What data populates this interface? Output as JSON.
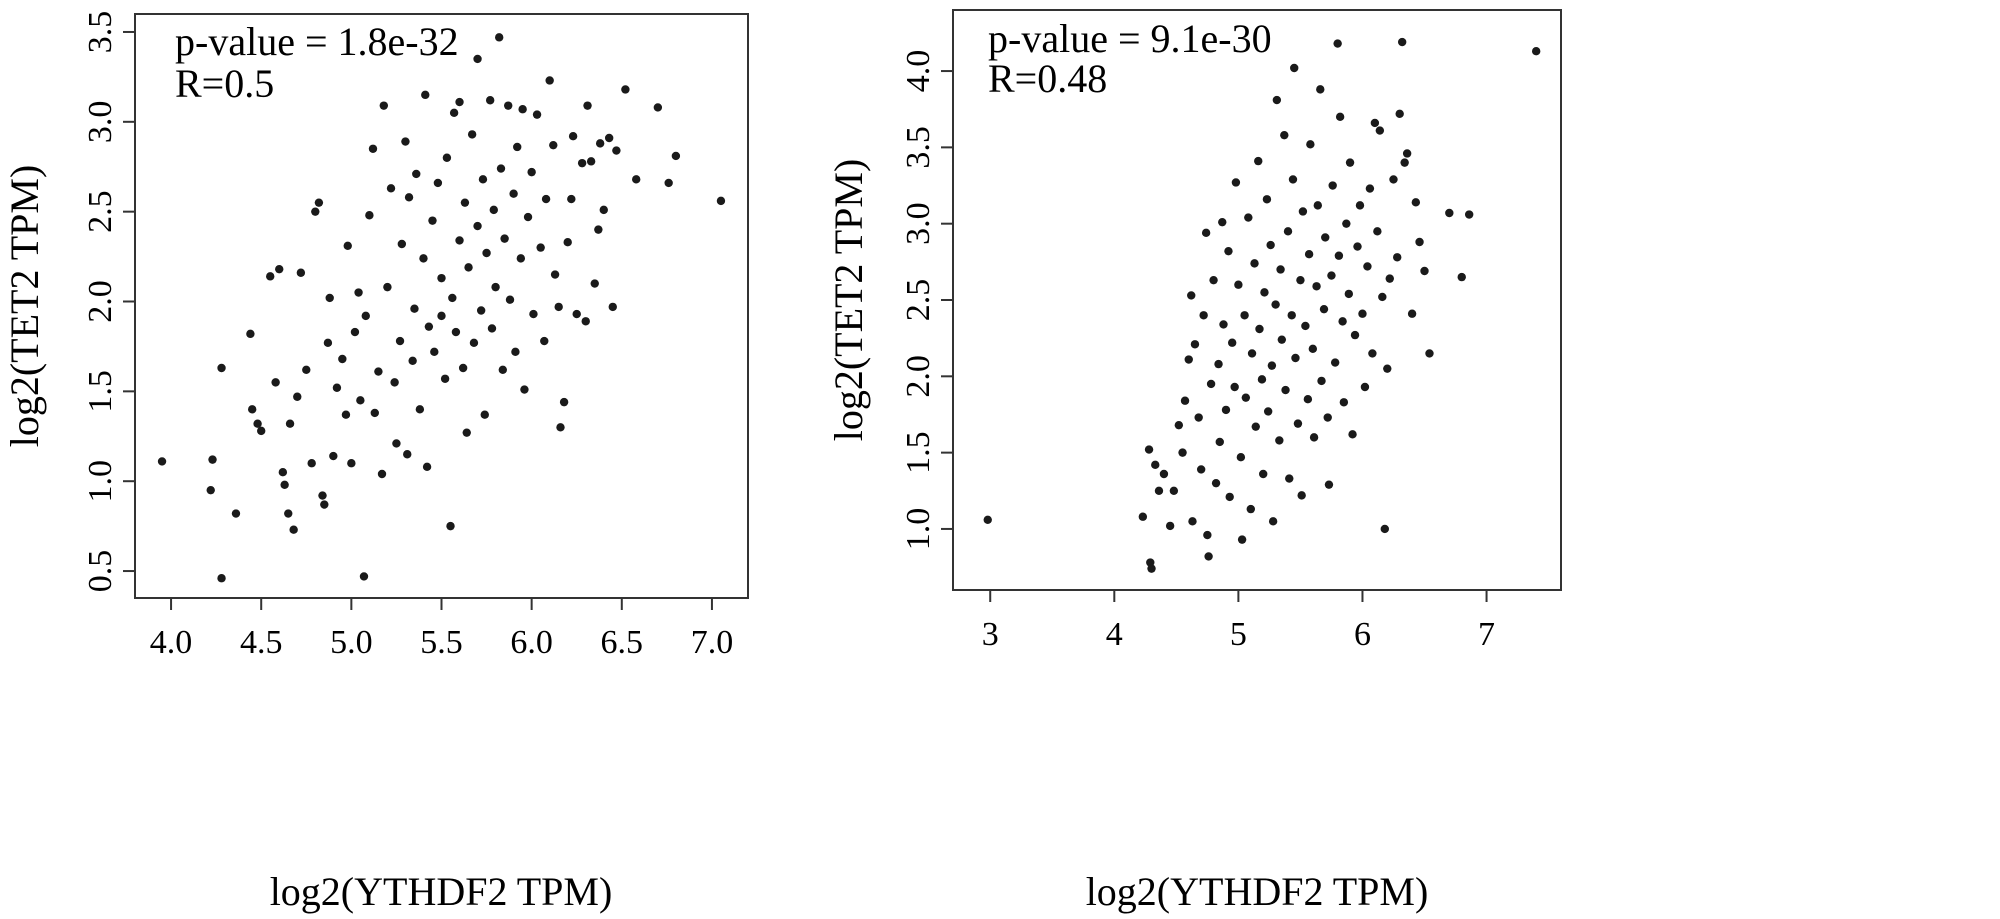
{
  "chart_data": [
    {
      "type": "scatter",
      "annotations": [
        "p-value = 1.8e-32",
        "R=0.5"
      ],
      "xlabel": "log2(YTHDF2 TPM)",
      "ylabel": "log2(TET2 TPM)",
      "xlim": [
        3.8,
        7.2
      ],
      "ylim": [
        0.35,
        3.6
      ],
      "x_ticks": [
        4.0,
        4.5,
        5.0,
        5.5,
        6.0,
        6.5,
        7.0
      ],
      "x_tick_labels": [
        "4.0",
        "4.5",
        "5.0",
        "5.5",
        "6.0",
        "6.5",
        "7.0"
      ],
      "y_ticks": [
        0.5,
        1.0,
        1.5,
        2.0,
        2.5,
        3.0,
        3.5
      ],
      "y_tick_labels": [
        "0.5",
        "1.0",
        "1.5",
        "2.0",
        "2.5",
        "3.0",
        "3.5"
      ],
      "point_color": "#1a1a1a",
      "grid": false,
      "points": [
        [
          3.95,
          1.11
        ],
        [
          4.23,
          1.12
        ],
        [
          4.22,
          0.95
        ],
        [
          4.28,
          0.46
        ],
        [
          4.36,
          0.82
        ],
        [
          4.28,
          1.63
        ],
        [
          4.44,
          1.82
        ],
        [
          4.45,
          1.4
        ],
        [
          4.48,
          1.32
        ],
        [
          4.5,
          1.28
        ],
        [
          4.55,
          2.14
        ],
        [
          4.58,
          1.55
        ],
        [
          4.6,
          2.18
        ],
        [
          4.62,
          1.05
        ],
        [
          4.63,
          0.98
        ],
        [
          4.65,
          0.82
        ],
        [
          4.68,
          0.73
        ],
        [
          4.66,
          1.32
        ],
        [
          4.7,
          1.47
        ],
        [
          4.72,
          2.16
        ],
        [
          4.75,
          1.62
        ],
        [
          4.78,
          1.1
        ],
        [
          4.8,
          2.5
        ],
        [
          4.82,
          2.55
        ],
        [
          4.84,
          0.92
        ],
        [
          4.85,
          0.87
        ],
        [
          4.87,
          1.77
        ],
        [
          4.88,
          2.02
        ],
        [
          4.9,
          1.14
        ],
        [
          4.92,
          1.52
        ],
        [
          4.95,
          1.68
        ],
        [
          4.97,
          1.37
        ],
        [
          4.98,
          2.31
        ],
        [
          5.0,
          1.1
        ],
        [
          5.02,
          1.83
        ],
        [
          5.04,
          2.05
        ],
        [
          5.05,
          1.45
        ],
        [
          5.07,
          0.47
        ],
        [
          5.08,
          1.92
        ],
        [
          5.1,
          2.48
        ],
        [
          5.12,
          2.85
        ],
        [
          5.13,
          1.38
        ],
        [
          5.15,
          1.61
        ],
        [
          5.18,
          3.09
        ],
        [
          5.17,
          1.04
        ],
        [
          5.2,
          2.08
        ],
        [
          5.22,
          2.63
        ],
        [
          5.24,
          1.55
        ],
        [
          5.25,
          1.21
        ],
        [
          5.27,
          1.78
        ],
        [
          5.28,
          2.32
        ],
        [
          5.3,
          2.89
        ],
        [
          5.31,
          1.15
        ],
        [
          5.32,
          2.58
        ],
        [
          5.34,
          1.67
        ],
        [
          5.35,
          1.96
        ],
        [
          5.36,
          2.71
        ],
        [
          5.38,
          1.4
        ],
        [
          5.4,
          2.24
        ],
        [
          5.41,
          3.15
        ],
        [
          5.42,
          1.08
        ],
        [
          5.43,
          1.86
        ],
        [
          5.45,
          2.45
        ],
        [
          5.46,
          1.72
        ],
        [
          5.48,
          2.66
        ],
        [
          5.5,
          1.92
        ],
        [
          5.5,
          2.13
        ],
        [
          5.52,
          1.57
        ],
        [
          5.53,
          2.8
        ],
        [
          5.55,
          0.75
        ],
        [
          5.56,
          2.02
        ],
        [
          5.57,
          3.05
        ],
        [
          5.58,
          1.83
        ],
        [
          5.6,
          2.34
        ],
        [
          5.6,
          3.11
        ],
        [
          5.62,
          1.63
        ],
        [
          5.63,
          2.55
        ],
        [
          5.64,
          1.27
        ],
        [
          5.65,
          2.19
        ],
        [
          5.67,
          2.93
        ],
        [
          5.68,
          1.77
        ],
        [
          5.7,
          3.35
        ],
        [
          5.7,
          2.42
        ],
        [
          5.72,
          1.95
        ],
        [
          5.73,
          2.68
        ],
        [
          5.74,
          1.37
        ],
        [
          5.75,
          2.27
        ],
        [
          5.77,
          3.12
        ],
        [
          5.78,
          1.85
        ],
        [
          5.79,
          2.51
        ],
        [
          5.8,
          2.08
        ],
        [
          5.82,
          3.47
        ],
        [
          5.83,
          2.74
        ],
        [
          5.84,
          1.62
        ],
        [
          5.85,
          2.35
        ],
        [
          5.87,
          3.09
        ],
        [
          5.88,
          2.01
        ],
        [
          5.9,
          2.6
        ],
        [
          5.91,
          1.72
        ],
        [
          5.92,
          2.86
        ],
        [
          5.94,
          2.24
        ],
        [
          5.95,
          3.07
        ],
        [
          5.96,
          1.51
        ],
        [
          5.98,
          2.47
        ],
        [
          6.0,
          2.72
        ],
        [
          6.01,
          1.93
        ],
        [
          6.03,
          3.04
        ],
        [
          6.05,
          2.3
        ],
        [
          6.07,
          1.78
        ],
        [
          6.08,
          2.57
        ],
        [
          6.1,
          3.23
        ],
        [
          6.12,
          2.87
        ],
        [
          6.13,
          2.15
        ],
        [
          6.15,
          1.97
        ],
        [
          6.16,
          1.3
        ],
        [
          6.18,
          1.44
        ],
        [
          6.2,
          2.33
        ],
        [
          6.22,
          2.57
        ],
        [
          6.23,
          2.92
        ],
        [
          6.25,
          1.93
        ],
        [
          6.28,
          2.77
        ],
        [
          6.3,
          1.89
        ],
        [
          6.31,
          3.09
        ],
        [
          6.33,
          2.78
        ],
        [
          6.35,
          2.1
        ],
        [
          6.37,
          2.4
        ],
        [
          6.38,
          2.88
        ],
        [
          6.4,
          2.51
        ],
        [
          6.43,
          2.91
        ],
        [
          6.45,
          1.97
        ],
        [
          6.47,
          2.84
        ],
        [
          6.52,
          3.18
        ],
        [
          6.58,
          2.68
        ],
        [
          6.7,
          3.08
        ],
        [
          6.76,
          2.66
        ],
        [
          6.8,
          2.81
        ],
        [
          7.05,
          2.56
        ]
      ]
    },
    {
      "type": "scatter",
      "annotations": [
        "p-value = 9.1e-30",
        "R=0.48"
      ],
      "xlabel": "log2(YTHDF2 TPM)",
      "ylabel": "log2(TET2 TPM)",
      "xlim": [
        2.7,
        7.6
      ],
      "ylim": [
        0.6,
        4.4
      ],
      "x_ticks": [
        3,
        4,
        5,
        6,
        7
      ],
      "x_tick_labels": [
        "3",
        "4",
        "5",
        "6",
        "7"
      ],
      "y_ticks": [
        1.0,
        1.5,
        2.0,
        2.5,
        3.0,
        3.5,
        4.0
      ],
      "y_tick_labels": [
        "1.0",
        "1.5",
        "2.0",
        "2.5",
        "3.0",
        "3.5",
        "4.0"
      ],
      "point_color": "#1a1a1a",
      "grid": false,
      "points": [
        [
          2.98,
          1.06
        ],
        [
          4.23,
          1.08
        ],
        [
          4.28,
          1.52
        ],
        [
          4.29,
          0.78
        ],
        [
          4.3,
          0.74
        ],
        [
          4.33,
          1.42
        ],
        [
          4.36,
          1.25
        ],
        [
          4.4,
          1.36
        ],
        [
          4.45,
          1.02
        ],
        [
          4.48,
          1.25
        ],
        [
          4.52,
          1.68
        ],
        [
          4.55,
          1.5
        ],
        [
          4.57,
          1.84
        ],
        [
          4.6,
          2.11
        ],
        [
          4.62,
          2.53
        ],
        [
          4.63,
          1.05
        ],
        [
          4.65,
          2.21
        ],
        [
          4.68,
          1.73
        ],
        [
          4.7,
          1.39
        ],
        [
          4.72,
          2.4
        ],
        [
          4.74,
          2.94
        ],
        [
          4.75,
          0.96
        ],
        [
          4.76,
          0.82
        ],
        [
          4.78,
          1.95
        ],
        [
          4.8,
          2.63
        ],
        [
          4.82,
          1.3
        ],
        [
          4.84,
          2.08
        ],
        [
          4.85,
          1.57
        ],
        [
          4.87,
          3.01
        ],
        [
          4.88,
          2.34
        ],
        [
          4.9,
          1.78
        ],
        [
          4.92,
          2.82
        ],
        [
          4.93,
          1.21
        ],
        [
          4.95,
          2.22
        ],
        [
          4.97,
          1.93
        ],
        [
          4.98,
          3.27
        ],
        [
          5.0,
          2.6
        ],
        [
          5.02,
          1.47
        ],
        [
          5.03,
          0.93
        ],
        [
          5.05,
          2.4
        ],
        [
          5.06,
          1.86
        ],
        [
          5.08,
          3.04
        ],
        [
          5.1,
          1.13
        ],
        [
          5.11,
          2.15
        ],
        [
          5.13,
          2.74
        ],
        [
          5.14,
          1.67
        ],
        [
          5.16,
          3.41
        ],
        [
          5.17,
          2.31
        ],
        [
          5.19,
          1.98
        ],
        [
          5.2,
          1.36
        ],
        [
          5.21,
          2.55
        ],
        [
          5.23,
          3.16
        ],
        [
          5.24,
          1.77
        ],
        [
          5.26,
          2.86
        ],
        [
          5.27,
          2.07
        ],
        [
          5.28,
          1.05
        ],
        [
          5.3,
          2.47
        ],
        [
          5.31,
          3.81
        ],
        [
          5.33,
          1.58
        ],
        [
          5.34,
          2.7
        ],
        [
          5.35,
          2.24
        ],
        [
          5.37,
          3.58
        ],
        [
          5.38,
          1.91
        ],
        [
          5.4,
          2.95
        ],
        [
          5.41,
          1.33
        ],
        [
          5.43,
          2.4
        ],
        [
          5.44,
          3.29
        ],
        [
          5.45,
          4.02
        ],
        [
          5.46,
          2.12
        ],
        [
          5.48,
          1.69
        ],
        [
          5.5,
          2.63
        ],
        [
          5.51,
          1.22
        ],
        [
          5.52,
          3.08
        ],
        [
          5.54,
          2.33
        ],
        [
          5.56,
          1.85
        ],
        [
          5.57,
          2.8
        ],
        [
          5.58,
          3.52
        ],
        [
          5.6,
          2.18
        ],
        [
          5.61,
          1.6
        ],
        [
          5.63,
          2.59
        ],
        [
          5.64,
          3.12
        ],
        [
          5.66,
          3.88
        ],
        [
          5.67,
          1.97
        ],
        [
          5.69,
          2.44
        ],
        [
          5.7,
          2.91
        ],
        [
          5.72,
          1.73
        ],
        [
          5.73,
          1.29
        ],
        [
          5.75,
          2.66
        ],
        [
          5.76,
          3.25
        ],
        [
          5.78,
          2.09
        ],
        [
          5.8,
          4.18
        ],
        [
          5.81,
          2.79
        ],
        [
          5.82,
          3.7
        ],
        [
          5.84,
          2.36
        ],
        [
          5.85,
          1.83
        ],
        [
          5.87,
          3.0
        ],
        [
          5.89,
          2.54
        ],
        [
          5.9,
          3.4
        ],
        [
          5.92,
          1.62
        ],
        [
          5.94,
          2.27
        ],
        [
          5.96,
          2.85
        ],
        [
          5.98,
          3.12
        ],
        [
          6.0,
          2.41
        ],
        [
          6.02,
          1.93
        ],
        [
          6.04,
          2.72
        ],
        [
          6.06,
          3.23
        ],
        [
          6.08,
          2.15
        ],
        [
          6.1,
          3.66
        ],
        [
          6.12,
          2.95
        ],
        [
          6.14,
          3.61
        ],
        [
          6.16,
          2.52
        ],
        [
          6.18,
          1.0
        ],
        [
          6.2,
          2.05
        ],
        [
          6.22,
          2.64
        ],
        [
          6.25,
          3.29
        ],
        [
          6.28,
          2.78
        ],
        [
          6.3,
          3.72
        ],
        [
          6.32,
          4.19
        ],
        [
          6.34,
          3.4
        ],
        [
          6.36,
          3.46
        ],
        [
          6.4,
          2.41
        ],
        [
          6.43,
          3.14
        ],
        [
          6.46,
          2.88
        ],
        [
          6.5,
          2.69
        ],
        [
          6.54,
          2.15
        ],
        [
          6.7,
          3.07
        ],
        [
          6.8,
          2.65
        ],
        [
          6.86,
          3.06
        ],
        [
          7.4,
          4.13
        ]
      ]
    }
  ]
}
